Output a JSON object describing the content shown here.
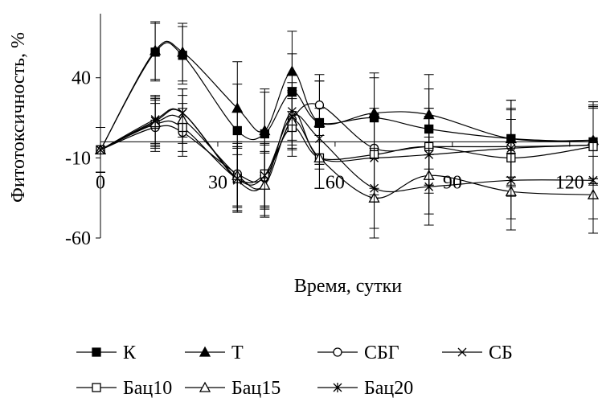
{
  "chart_data": {
    "type": "line",
    "title": "",
    "xlabel": "Время, сутки",
    "ylabel": "Фитотоксичность, %",
    "xlim": [
      0,
      126
    ],
    "ylim": [
      -60,
      80
    ],
    "x_ticks": [
      0,
      30,
      60,
      90,
      120
    ],
    "x_tick_labels": [
      "0",
      "30",
      "60",
      "90",
      "120"
    ],
    "y_ticks": [
      40,
      -10,
      -60
    ],
    "y_tick_labels": [
      "40",
      "-10",
      "-60"
    ],
    "grid": false,
    "legend_position": "bottom",
    "x": [
      0,
      14,
      21,
      35,
      42,
      49,
      56,
      70,
      84,
      105,
      126
    ],
    "series": [
      {
        "name": "К",
        "marker": "filled-square",
        "values": [
          -5,
          56,
          54,
          7,
          5,
          31,
          12,
          15,
          8,
          2,
          0
        ],
        "errors": [
          14,
          18,
          18,
          29,
          26,
          24,
          26,
          25,
          25,
          24,
          23
        ]
      },
      {
        "name": "Т",
        "marker": "filled-triangle",
        "values": [
          -5,
          57,
          56,
          21,
          7,
          44,
          12,
          18,
          17,
          2,
          1
        ],
        "errors": [
          14,
          18,
          18,
          29,
          26,
          25,
          26,
          25,
          25,
          24,
          24
        ]
      },
      {
        "name": "СБГ",
        "marker": "open-circle",
        "values": [
          -5,
          9,
          6,
          -20,
          -22,
          14,
          23,
          -4,
          -3,
          -3,
          -2
        ],
        "errors": [
          14,
          15,
          15,
          20,
          20,
          18,
          19,
          25,
          24,
          24,
          24
        ]
      },
      {
        "name": "СБ",
        "marker": "x",
        "values": [
          -5,
          14,
          18,
          -24,
          -26,
          19,
          -10,
          -10,
          -8,
          -4,
          -2
        ],
        "errors": [
          14,
          15,
          15,
          20,
          20,
          18,
          19,
          25,
          24,
          24,
          24
        ]
      },
      {
        "name": "Бац10",
        "marker": "open-square",
        "values": [
          -5,
          11,
          9,
          -23,
          -20,
          9,
          -10,
          -8,
          -3,
          -10,
          -3
        ],
        "errors": [
          14,
          15,
          15,
          20,
          20,
          18,
          19,
          25,
          24,
          24,
          24
        ]
      },
      {
        "name": "Бац15",
        "marker": "open-triangle",
        "values": [
          -5,
          12,
          14,
          -21,
          -27,
          13,
          -10,
          -35,
          -21,
          -31,
          -33
        ],
        "errors": [
          14,
          15,
          15,
          20,
          20,
          18,
          19,
          25,
          24,
          24,
          24
        ]
      },
      {
        "name": "Бац20",
        "marker": "asterisk",
        "values": [
          -5,
          13,
          18,
          -23,
          -21,
          16,
          2,
          -29,
          -28,
          -24,
          -24
        ],
        "errors": [
          14,
          15,
          15,
          20,
          20,
          18,
          19,
          25,
          24,
          24,
          24
        ]
      }
    ]
  }
}
